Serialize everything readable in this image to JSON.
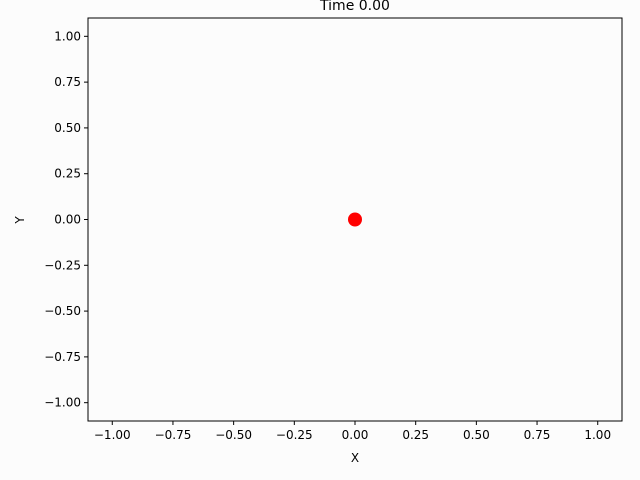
{
  "chart_data": {
    "type": "scatter",
    "title": "Time 0.00",
    "xlabel": "X",
    "ylabel": "Y",
    "xlim": [
      -1.1,
      1.1
    ],
    "ylim": [
      -1.1,
      1.1
    ],
    "xticks": [
      -1.0,
      -0.75,
      -0.5,
      -0.25,
      0.0,
      0.25,
      0.5,
      0.75,
      1.0
    ],
    "xtick_labels": [
      "−1.00",
      "−0.75",
      "−0.50",
      "−0.25",
      "0.00",
      "0.25",
      "0.50",
      "0.75",
      "1.00"
    ],
    "yticks": [
      1.0,
      0.75,
      0.5,
      0.25,
      0.0,
      -0.25,
      -0.5,
      -0.75,
      -1.0
    ],
    "ytick_labels": [
      "1.00",
      "0.75",
      "0.50",
      "0.25",
      "0.00",
      "−0.25",
      "−0.50",
      "−0.75",
      "−1.00"
    ],
    "grid": false,
    "series": [
      {
        "points": [
          {
            "x": 0.0,
            "y": 0.0
          }
        ],
        "color": "#ff0000"
      }
    ]
  }
}
